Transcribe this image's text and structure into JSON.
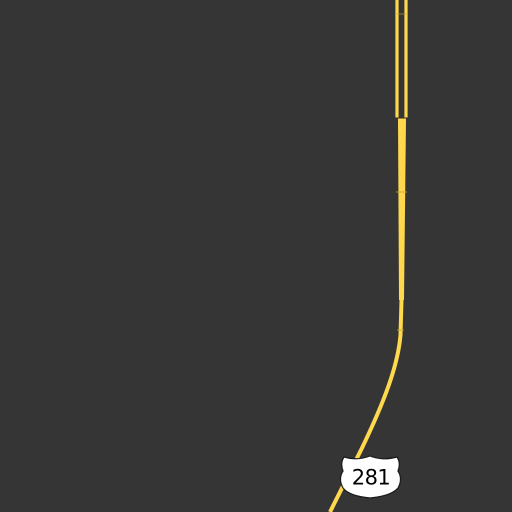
{
  "map": {
    "background_color": "#353535",
    "road_color": "#ffd84d",
    "road_divider_color": "#2e2e2e",
    "shield": {
      "type": "us-highway-shield",
      "route_number": "281",
      "fill_color": "#ffffff",
      "outline_color": "#1a1a1a"
    }
  }
}
